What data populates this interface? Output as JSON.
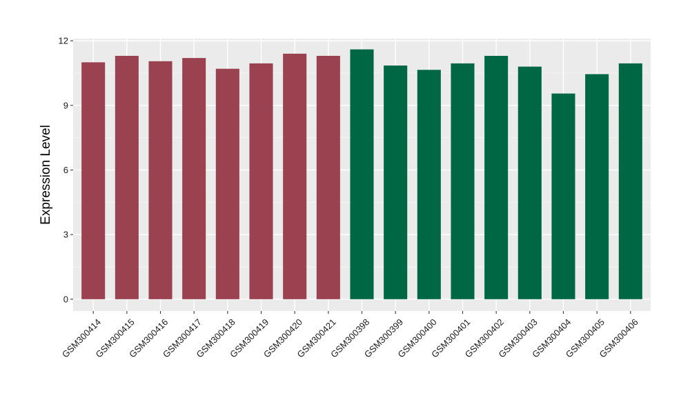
{
  "chart_data": {
    "type": "bar",
    "title": "",
    "xlabel": "",
    "ylabel": "Expression Level",
    "ylim": [
      -0.55,
      12.1
    ],
    "yticks": [
      0,
      3,
      6,
      9,
      12
    ],
    "grid": true,
    "legend": "none",
    "categories": [
      "GSM300414",
      "GSM300415",
      "GSM300416",
      "GSM300417",
      "GSM300418",
      "GSM300419",
      "GSM300420",
      "GSM300421",
      "GSM300398",
      "GSM300399",
      "GSM300400",
      "GSM300401",
      "GSM300402",
      "GSM300403",
      "GSM300404",
      "GSM300405",
      "GSM300406"
    ],
    "values": [
      11.0,
      11.3,
      11.05,
      11.2,
      10.7,
      10.95,
      11.4,
      11.3,
      11.6,
      10.85,
      10.65,
      10.95,
      11.3,
      10.8,
      9.55,
      10.45,
      10.95
    ],
    "bar_colors": [
      "#9a4250",
      "#9a4250",
      "#9a4250",
      "#9a4250",
      "#9a4250",
      "#9a4250",
      "#9a4250",
      "#9a4250",
      "#006744",
      "#006744",
      "#006744",
      "#006744",
      "#006744",
      "#006744",
      "#006744",
      "#006744",
      "#006744"
    ],
    "colors": {
      "panel_background": "#ebebeb",
      "grid_major": "#ffffff",
      "grid_minor": "#f5f5f5",
      "tick_mark": "#333333"
    }
  }
}
